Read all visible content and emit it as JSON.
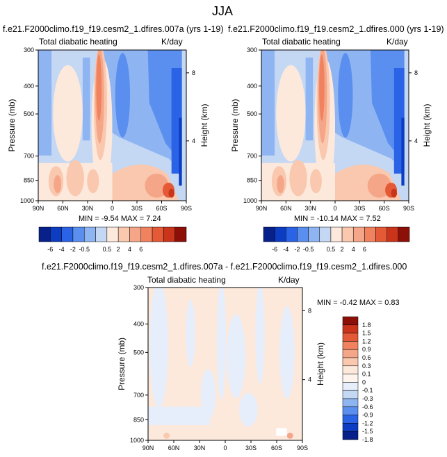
{
  "page": {
    "title": "JJA"
  },
  "colors": {
    "main_scale": [
      "#08208a",
      "#0b3cc2",
      "#2a63e6",
      "#5a8ff0",
      "#8fb4f2",
      "#c4d8f4",
      "#fde9dc",
      "#f9c8ae",
      "#f6a688",
      "#f08260",
      "#e45a36",
      "#c9341b",
      "#8c0f08"
    ],
    "diff_scale": [
      "#08208a",
      "#0b3cc2",
      "#2a63e6",
      "#5a8ff0",
      "#8fb4f2",
      "#c4d8f4",
      "#e6eefb",
      "#fdf4ee",
      "#fde9dc",
      "#f9c8ae",
      "#f6a688",
      "#f08260",
      "#e45a36",
      "#c9341b",
      "#8c0f08"
    ]
  },
  "chart_data": [
    {
      "type": "heatmap",
      "case_title": "f.e21.F2000climo.f19_f19.cesm2_1.dfires.007a (yrs 1-19)",
      "variable": "Total diabatic heating",
      "units": "K/day",
      "ylabel": "Pressure (mb)",
      "ylabel_right": "Height (km)",
      "x_ticks": [
        "90N",
        "60N",
        "30N",
        "0",
        "30S",
        "60S",
        "90S"
      ],
      "y_ticks": [
        "300",
        "400",
        "500",
        "700",
        "850",
        "1000"
      ],
      "y_ticks_right": [
        "8",
        "4"
      ],
      "ylim": [
        1000,
        300
      ],
      "stats": "MIN = -9.54   MAX =  7.24",
      "colorbar_labels": [
        "-6",
        "-4",
        "-2",
        "-0.5",
        "0.5",
        "2",
        "4",
        "6"
      ]
    },
    {
      "type": "heatmap",
      "case_title": "f.e21.F2000climo.f19_f19.cesm2_1.dfires.000 (yrs 1-19)",
      "variable": "Total diabatic heating",
      "units": "K/day",
      "ylabel": "Pressure (mb)",
      "ylabel_right": "Height (km)",
      "x_ticks": [
        "90N",
        "60N",
        "30N",
        "0",
        "30S",
        "60S",
        "90S"
      ],
      "y_ticks": [
        "300",
        "400",
        "500",
        "700",
        "850",
        "1000"
      ],
      "y_ticks_right": [
        "8",
        "4"
      ],
      "ylim": [
        1000,
        300
      ],
      "stats": "MIN = -10.14   MAX =  7.52",
      "colorbar_labels": [
        "-6",
        "-4",
        "-2",
        "-0.5",
        "0.5",
        "2",
        "4",
        "6"
      ]
    },
    {
      "type": "heatmap",
      "case_title": "f.e21.F2000climo.f19_f19.cesm2_1.dfires.007a - f.e21.F2000climo.f19_f19.cesm2_1.dfires.000",
      "variable": "Total diabatic heating",
      "units": "K/day",
      "ylabel": "Pressure (mb)",
      "ylabel_right": "Height (km)",
      "x_ticks": [
        "90N",
        "60N",
        "30N",
        "0",
        "30S",
        "60S",
        "90S"
      ],
      "y_ticks": [
        "300",
        "400",
        "500",
        "700",
        "850",
        "1000"
      ],
      "y_ticks_right": [
        "8",
        "4"
      ],
      "ylim": [
        1000,
        300
      ],
      "stats": "MIN =  -0.42   MAX =  0.83",
      "colorbar_labels": [
        "1.8",
        "1.5",
        "1.2",
        "0.9",
        "0.6",
        "0.3",
        "0.1",
        "0",
        "-0.1",
        "-0.3",
        "-0.6",
        "-0.9",
        "-1.2",
        "-1.5",
        "-1.8"
      ]
    }
  ]
}
